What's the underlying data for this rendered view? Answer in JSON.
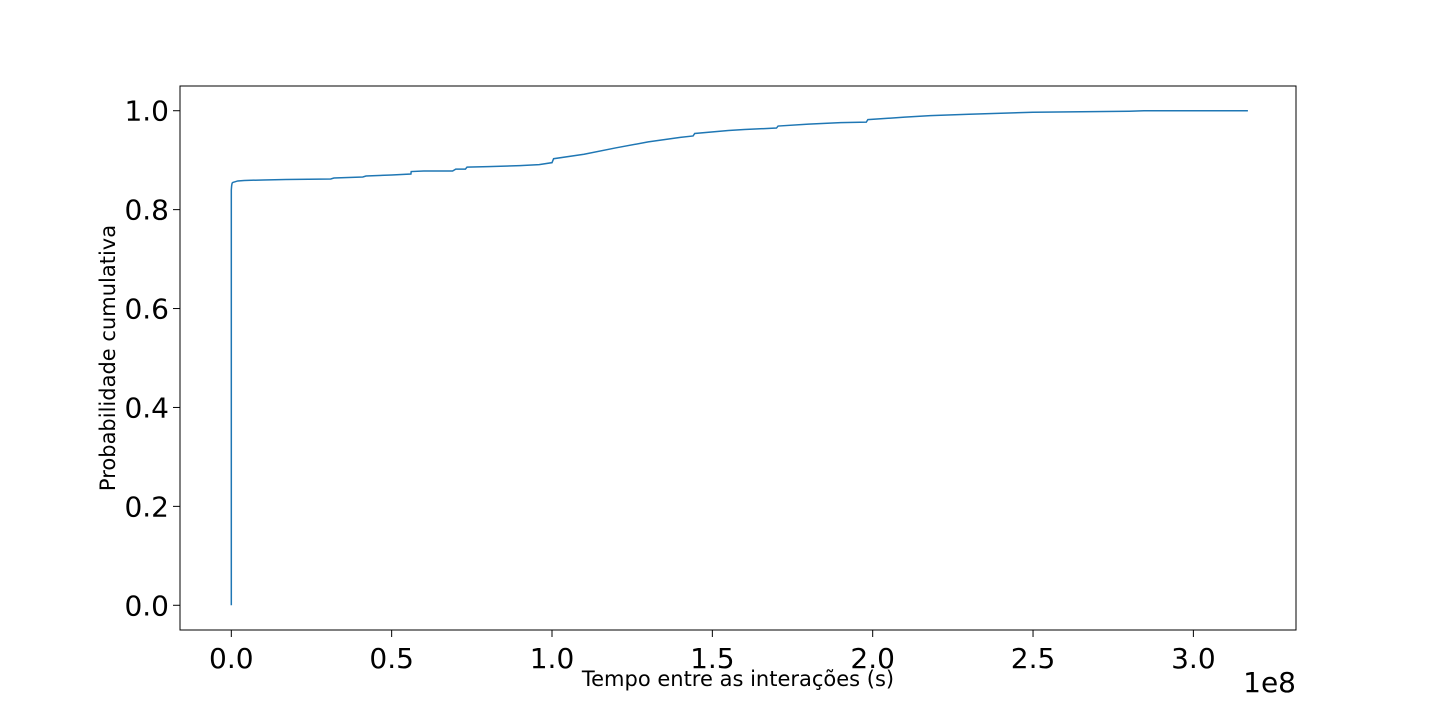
{
  "chart_data": {
    "type": "line",
    "title": "",
    "xlabel": "Tempo entre as interações (s)",
    "ylabel": "Probabilidade cumulativa",
    "x_offset_label": "1e8",
    "xlim": [
      -0.16,
      3.32
    ],
    "ylim": [
      -0.05,
      1.05
    ],
    "x_ticks": [
      0.0,
      0.5,
      1.0,
      1.5,
      2.0,
      2.5,
      3.0
    ],
    "x_tick_labels": [
      "0.0",
      "0.5",
      "1.0",
      "1.5",
      "2.0",
      "2.5",
      "3.0"
    ],
    "y_ticks": [
      0.0,
      0.2,
      0.4,
      0.6,
      0.8,
      1.0
    ],
    "y_tick_labels": [
      "0.0",
      "0.2",
      "0.4",
      "0.6",
      "0.8",
      "1.0"
    ],
    "grid": false,
    "line_color": "#1f77b4",
    "series": [
      {
        "x": [
          0.0,
          0.0,
          0.0,
          0.0,
          0.001,
          0.002,
          0.003,
          0.005,
          0.01,
          0.02,
          0.04,
          0.1,
          0.17,
          0.31,
          0.32,
          0.41,
          0.42,
          0.5,
          0.56,
          0.561,
          0.6,
          0.69,
          0.7,
          0.73,
          0.735,
          0.8,
          0.9,
          0.96,
          1.0,
          1.005,
          1.1,
          1.2,
          1.3,
          1.4,
          1.44,
          1.445,
          1.55,
          1.6,
          1.7,
          1.705,
          1.8,
          1.9,
          1.98,
          1.985,
          2.1,
          2.18,
          2.3,
          2.5,
          2.8,
          2.85,
          3.17
        ],
        "y": [
          0.0,
          0.5,
          0.8,
          0.84,
          0.848,
          0.852,
          0.854,
          0.855,
          0.856,
          0.858,
          0.859,
          0.86,
          0.861,
          0.862,
          0.864,
          0.866,
          0.868,
          0.87,
          0.872,
          0.877,
          0.878,
          0.878,
          0.882,
          0.882,
          0.886,
          0.887,
          0.889,
          0.891,
          0.895,
          0.903,
          0.912,
          0.925,
          0.937,
          0.946,
          0.949,
          0.954,
          0.96,
          0.962,
          0.965,
          0.969,
          0.973,
          0.976,
          0.977,
          0.982,
          0.987,
          0.99,
          0.993,
          0.997,
          0.999,
          1.0,
          1.0
        ]
      }
    ]
  }
}
